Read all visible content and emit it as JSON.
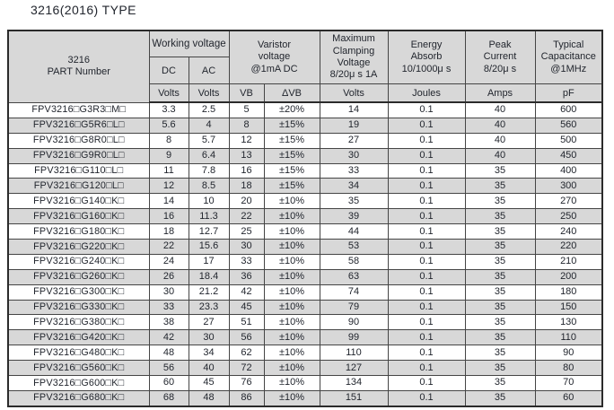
{
  "title": "3216(2016) TYPE",
  "colors": {
    "page_bg": "#ffffff",
    "header_bg": "#d8d8d8",
    "row_alt_bg": "#d8d8d8",
    "grid_line": "#454545",
    "outer_border": "#2b2b2b",
    "text": "#22262e"
  },
  "table": {
    "header": {
      "part_number": "3216\nPART Number",
      "working_voltage": "Working voltage",
      "dc": "DC",
      "ac": "AC",
      "varistor_voltage": "Varistor\nvoltage\n@1mA DC",
      "max_clamping": "Maximum\nClamping\nVoltage\n8/20μ s 1A",
      "energy_absorb": "Energy\nAbsorb\n10/1000μ s",
      "peak_current": "Peak\nCurrent\n8/20μ s",
      "typical_capacitance": "Typical\nCapacitance\n@1MHz",
      "units": [
        "Volts",
        "Volts",
        "VB",
        "ΔVB",
        "Volts",
        "Joules",
        "Amps",
        "pF"
      ]
    },
    "rows": [
      [
        "FPV3216□G3R3□M□",
        "3.3",
        "2.5",
        "5",
        "±20%",
        "14",
        "0.1",
        "40",
        "600"
      ],
      [
        "FPV3216□G5R6□L□",
        "5.6",
        "4",
        "8",
        "±15%",
        "19",
        "0.1",
        "40",
        "560"
      ],
      [
        "FPV3216□G8R0□L□",
        "8",
        "5.7",
        "12",
        "±15%",
        "27",
        "0.1",
        "40",
        "500"
      ],
      [
        "FPV3216□G9R0□L□",
        "9",
        "6.4",
        "13",
        "±15%",
        "30",
        "0.1",
        "40",
        "450"
      ],
      [
        "FPV3216□G110□L□",
        "11",
        "7.8",
        "16",
        "±15%",
        "33",
        "0.1",
        "35",
        "400"
      ],
      [
        "FPV3216□G120□L□",
        "12",
        "8.5",
        "18",
        "±15%",
        "34",
        "0.1",
        "35",
        "300"
      ],
      [
        "FPV3216□G140□K□",
        "14",
        "10",
        "20",
        "±10%",
        "35",
        "0.1",
        "35",
        "270"
      ],
      [
        "FPV3216□G160□K□",
        "16",
        "11.3",
        "22",
        "±10%",
        "39",
        "0.1",
        "35",
        "250"
      ],
      [
        "FPV3216□G180□K□",
        "18",
        "12.7",
        "25",
        "±10%",
        "44",
        "0.1",
        "35",
        "240"
      ],
      [
        "FPV3216□G220□K□",
        "22",
        "15.6",
        "30",
        "±10%",
        "53",
        "0.1",
        "35",
        "220"
      ],
      [
        "FPV3216□G240□K□",
        "24",
        "17",
        "33",
        "±10%",
        "58",
        "0.1",
        "35",
        "210"
      ],
      [
        "FPV3216□G260□K□",
        "26",
        "18.4",
        "36",
        "±10%",
        "63",
        "0.1",
        "35",
        "200"
      ],
      [
        "FPV3216□G300□K□",
        "30",
        "21.2",
        "42",
        "±10%",
        "74",
        "0.1",
        "35",
        "180"
      ],
      [
        "FPV3216□G330□K□",
        "33",
        "23.3",
        "45",
        "±10%",
        "79",
        "0.1",
        "35",
        "150"
      ],
      [
        "FPV3216□G380□K□",
        "38",
        "27",
        "51",
        "±10%",
        "90",
        "0.1",
        "35",
        "130"
      ],
      [
        "FPV3216□G420□K□",
        "42",
        "30",
        "56",
        "±10%",
        "99",
        "0.1",
        "35",
        "110"
      ],
      [
        "FPV3216□G480□K□",
        "48",
        "34",
        "62",
        "±10%",
        "110",
        "0.1",
        "35",
        "90"
      ],
      [
        "FPV3216□G560□K□",
        "56",
        "40",
        "72",
        "±10%",
        "127",
        "0.1",
        "35",
        "80"
      ],
      [
        "FPV3216□G600□K□",
        "60",
        "45",
        "76",
        "±10%",
        "134",
        "0.1",
        "35",
        "70"
      ],
      [
        "FPV3216□G680□K□",
        "68",
        "48",
        "86",
        "±10%",
        "151",
        "0.1",
        "35",
        "60"
      ]
    ]
  }
}
